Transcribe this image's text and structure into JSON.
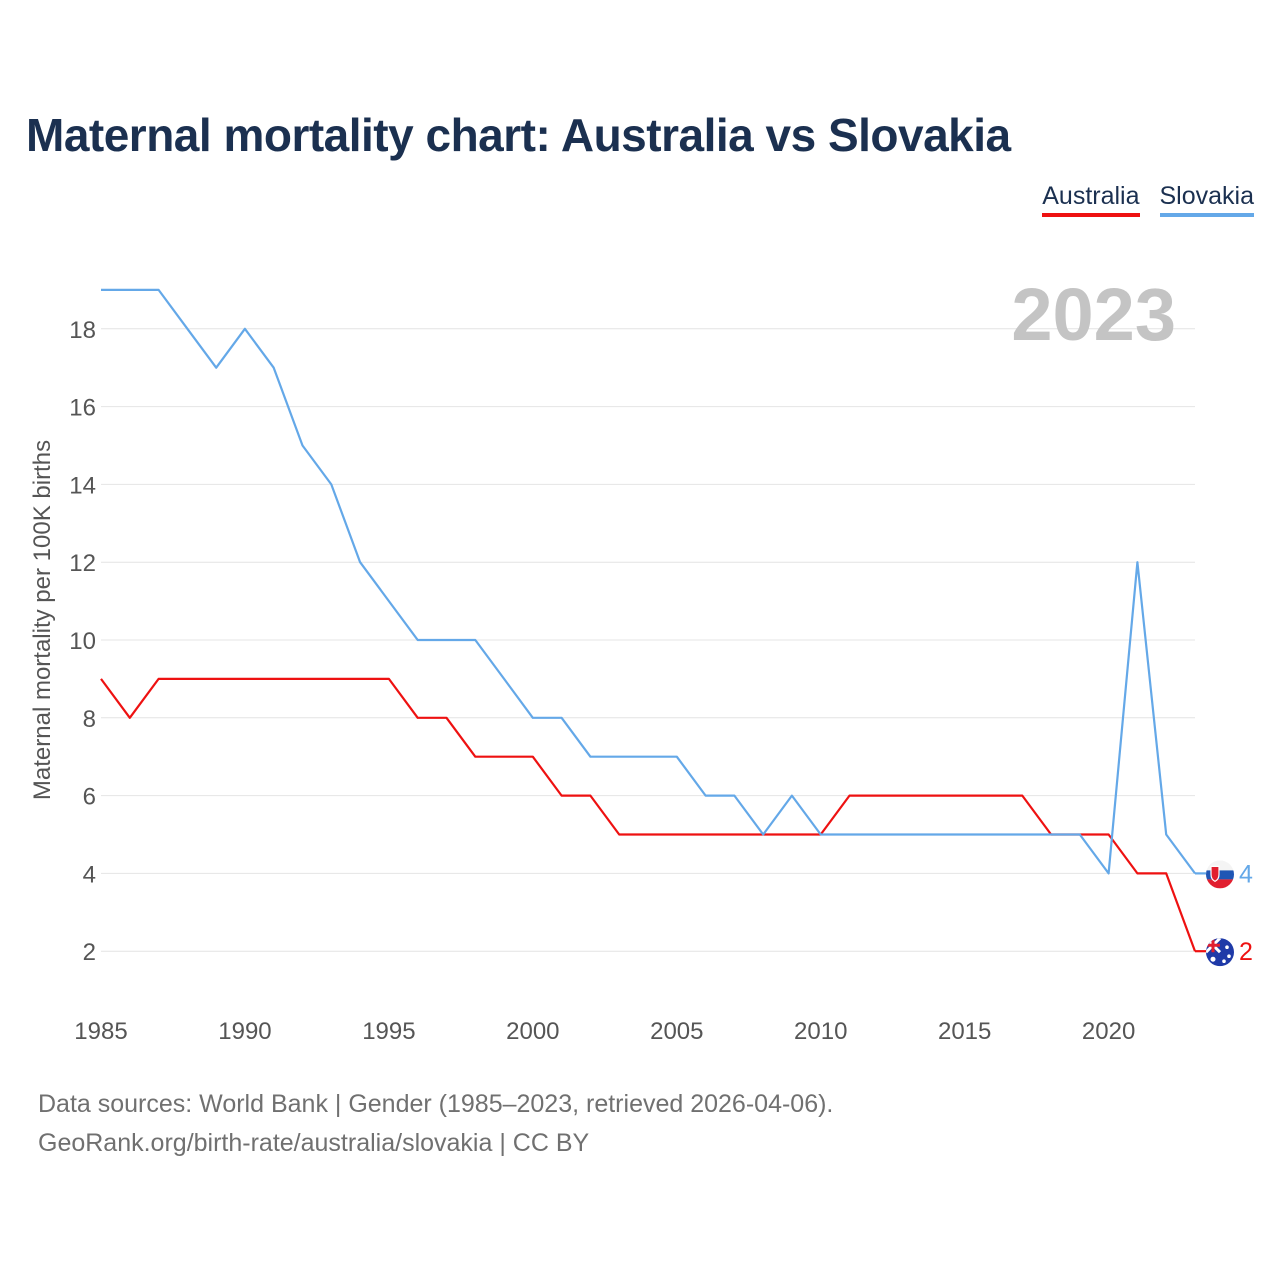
{
  "chart_data": {
    "type": "line",
    "title": "Maternal mortality chart: Australia vs Slovakia",
    "ylabel": "Maternal mortality per 100K births",
    "xlabel": "",
    "year_label": "2023",
    "x": [
      1985,
      1986,
      1987,
      1988,
      1989,
      1990,
      1991,
      1992,
      1993,
      1994,
      1995,
      1996,
      1997,
      1998,
      1999,
      2000,
      2001,
      2002,
      2003,
      2004,
      2005,
      2006,
      2007,
      2008,
      2009,
      2010,
      2011,
      2012,
      2013,
      2014,
      2015,
      2016,
      2017,
      2018,
      2019,
      2020,
      2021,
      2022,
      2023
    ],
    "xticks": [
      1985,
      1990,
      1995,
      2000,
      2005,
      2010,
      2015,
      2020
    ],
    "yticks": [
      2,
      4,
      6,
      8,
      10,
      12,
      14,
      16,
      18
    ],
    "xlim": [
      1985,
      2023
    ],
    "ylim": [
      0,
      19
    ],
    "series": [
      {
        "name": "Australia",
        "color": "#ee1111",
        "flag": "australia-flag-icon",
        "end_label": "2",
        "values": [
          9,
          8,
          9,
          9,
          9,
          9,
          9,
          9,
          9,
          9,
          9,
          8,
          8,
          7,
          7,
          7,
          6,
          6,
          5,
          5,
          5,
          5,
          5,
          5,
          5,
          5,
          6,
          6,
          6,
          6,
          6,
          6,
          6,
          5,
          5,
          5,
          4,
          4,
          2
        ]
      },
      {
        "name": "Slovakia",
        "color": "#64a8e8",
        "flag": "slovakia-flag-icon",
        "end_label": "4",
        "values": [
          19,
          19,
          19,
          18,
          17,
          18,
          17,
          15,
          14,
          12,
          11,
          10,
          10,
          10,
          9,
          8,
          8,
          7,
          7,
          7,
          7,
          6,
          6,
          5,
          6,
          5,
          5,
          5,
          5,
          5,
          5,
          5,
          5,
          5,
          5,
          4,
          12,
          5,
          4
        ]
      }
    ]
  },
  "legend": {
    "australia": "Australia",
    "slovakia": "Slovakia"
  },
  "footer": {
    "line1": "Data sources: World Bank | Gender (1985–2023, retrieved 2026-04-06).",
    "line2": "GeoRank.org/birth-rate/australia/slovakia | CC BY"
  }
}
